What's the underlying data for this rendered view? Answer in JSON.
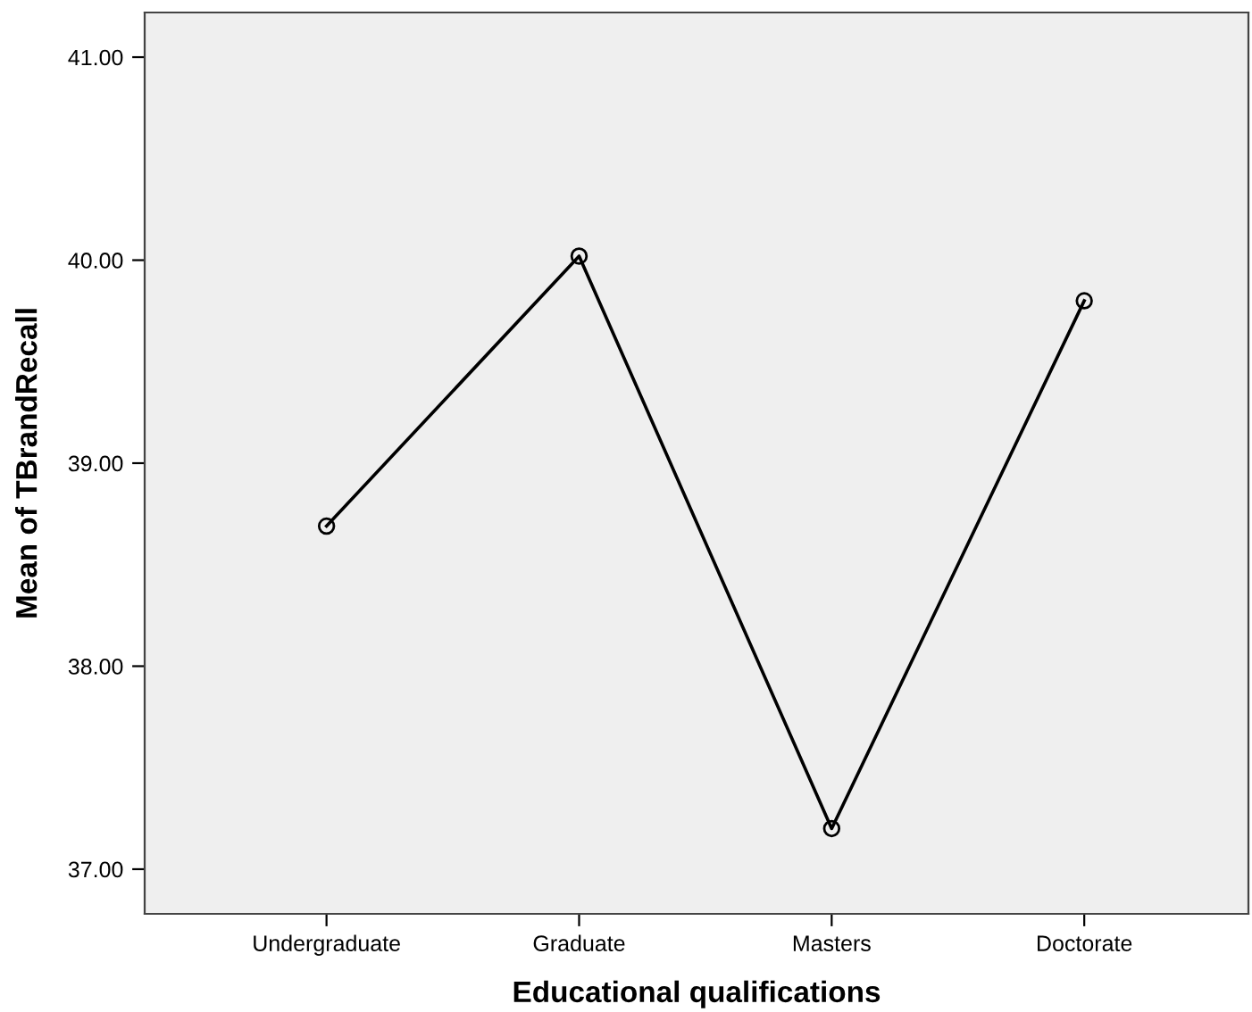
{
  "chart_data": {
    "type": "line",
    "xlabel": "Educational qualifications",
    "ylabel": "Mean of TBrandRecall",
    "categories": [
      "Undergraduate",
      "Graduate",
      "Masters",
      "Doctorate"
    ],
    "values": [
      38.69,
      40.02,
      37.2,
      39.8
    ],
    "color": "#000000",
    "marker": "circle",
    "line_style": "solid",
    "ylim": [
      36.78,
      41.22
    ],
    "yticks": [
      {
        "value": 37,
        "label": "37.00"
      },
      {
        "value": 38,
        "label": "38.00"
      },
      {
        "value": 39,
        "label": "39.00"
      },
      {
        "value": 40,
        "label": "40.00"
      },
      {
        "value": 41,
        "label": "41.00"
      }
    ],
    "grid": false,
    "legend": false
  }
}
